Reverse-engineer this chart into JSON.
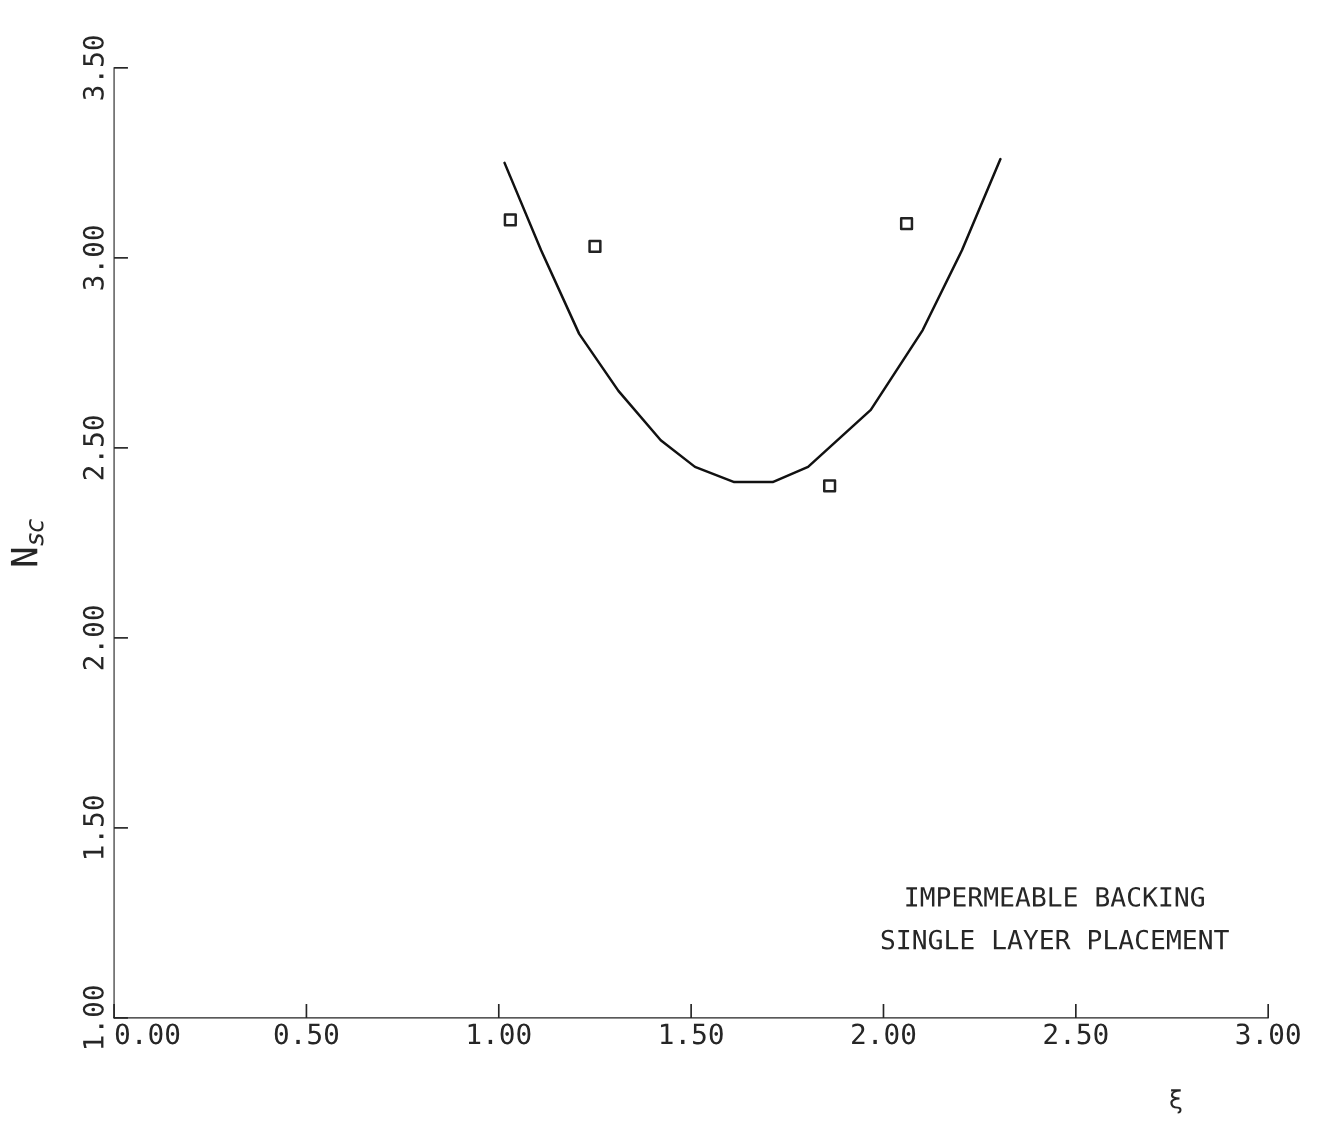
{
  "chart_data": {
    "type": "scatter",
    "xlabel": "ξ",
    "ylabel": "N$_{sc}$",
    "xlim": [
      0,
      3
    ],
    "ylim": [
      1,
      3.5
    ],
    "xticks": [
      {
        "value": 0,
        "label": "0.00"
      },
      {
        "value": 0.5,
        "label": "0.50"
      },
      {
        "value": 1,
        "label": "1.00"
      },
      {
        "value": 1.5,
        "label": "1.50"
      },
      {
        "value": 2,
        "label": "2.00"
      },
      {
        "value": 2.5,
        "label": "2.50"
      },
      {
        "value": 3,
        "label": "3.00"
      }
    ],
    "yticks": [
      {
        "value": 1,
        "label": "1.00"
      },
      {
        "value": 1.5,
        "label": "1.50"
      },
      {
        "value": 2,
        "label": "2.00"
      },
      {
        "value": 2.5,
        "label": "2.50"
      },
      {
        "value": 3,
        "label": "3.00"
      },
      {
        "value": 3.5,
        "label": "3.50"
      }
    ],
    "grid": false,
    "marker": "square",
    "series": [
      {
        "color": "#222222",
        "x": [
          1.03,
          1.25,
          1.86,
          2.06
        ],
        "values": [
          3.1,
          3.03,
          2.4,
          3.09
        ]
      },
      {
        "type": "line",
        "color": "#111111",
        "marker": "none",
        "line_style": "solid",
        "x": [
          1.015,
          1.11,
          1.209,
          1.311,
          1.421,
          1.51,
          1.612,
          1.712,
          1.804,
          1.967,
          2.102,
          2.204,
          2.304
        ],
        "values": [
          3.25,
          3.02,
          2.8,
          2.65,
          2.52,
          2.45,
          2.41,
          2.41,
          2.45,
          2.6,
          2.81,
          3.02,
          3.26
        ]
      }
    ],
    "annotations": [
      "IMPERMEABLE BACKING",
      "SINGLE LAYER PLACEMENT"
    ]
  }
}
